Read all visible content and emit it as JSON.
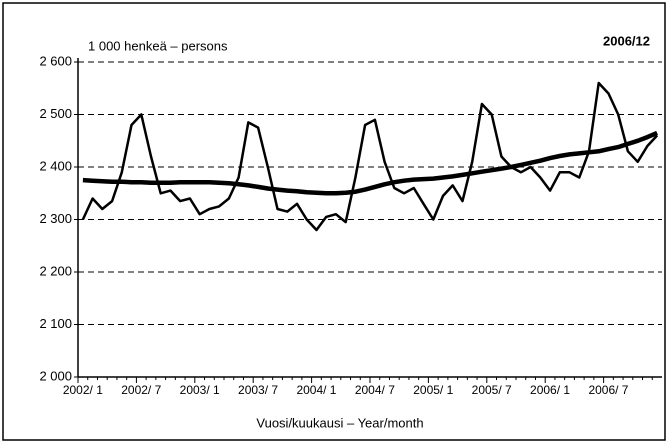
{
  "chart_data": {
    "type": "line",
    "annotation": "1 000 henkeä – persons",
    "period": "2006/12",
    "x_label": "Vuosi/kuukausi – Year/month",
    "categories": [
      "2002/ 1",
      null,
      null,
      null,
      null,
      null,
      "2002/ 7",
      null,
      null,
      null,
      null,
      null,
      "2003/ 1",
      null,
      null,
      null,
      null,
      null,
      "2003/ 7",
      null,
      null,
      null,
      null,
      null,
      "2004/ 1",
      null,
      null,
      null,
      null,
      null,
      "2004/ 7",
      null,
      null,
      null,
      null,
      null,
      "2005/ 1",
      null,
      null,
      null,
      null,
      null,
      "2005/ 7",
      null,
      null,
      null,
      null,
      null,
      "2006/ 1",
      null,
      null,
      null,
      null,
      null,
      "2006/ 7",
      null,
      null,
      null,
      null,
      null
    ],
    "series": [
      {
        "color": "#000000",
        "width": 2.5,
        "values": [
          2300,
          2340,
          2320,
          2335,
          2390,
          2480,
          2500,
          2420,
          2350,
          2355,
          2335,
          2340,
          2310,
          2320,
          2325,
          2340,
          2380,
          2485,
          2475,
          2400,
          2320,
          2315,
          2330,
          2300,
          2280,
          2305,
          2310,
          2295,
          2380,
          2480,
          2490,
          2410,
          2360,
          2350,
          2360,
          2330,
          2300,
          2345,
          2365,
          2335,
          2410,
          2520,
          2500,
          2420,
          2400,
          2390,
          2400,
          2380,
          2355,
          2390,
          2390,
          2380,
          2430,
          2560,
          2540,
          2500,
          2430,
          2410,
          2440,
          2460
        ]
      },
      {
        "color": "#000000",
        "width": 4.5,
        "values": [
          2375,
          2374,
          2373,
          2372,
          2372,
          2371,
          2371,
          2370,
          2370,
          2370,
          2371,
          2371,
          2371,
          2371,
          2370,
          2369,
          2367,
          2365,
          2362,
          2359,
          2357,
          2355,
          2354,
          2352,
          2351,
          2350,
          2350,
          2351,
          2353,
          2357,
          2362,
          2367,
          2371,
          2374,
          2376,
          2377,
          2378,
          2380,
          2382,
          2385,
          2388,
          2391,
          2394,
          2397,
          2400,
          2404,
          2408,
          2412,
          2417,
          2421,
          2424,
          2426,
          2428,
          2430,
          2434,
          2438,
          2444,
          2450,
          2457,
          2465
        ]
      }
    ],
    "ylim": [
      2000,
      2600
    ],
    "yticks": [
      {
        "value": 2000,
        "label": "2 000"
      },
      {
        "value": 2100,
        "label": "2 100"
      },
      {
        "value": 2200,
        "label": "2 200"
      },
      {
        "value": 2300,
        "label": "2 300"
      },
      {
        "value": 2400,
        "label": "2 400"
      },
      {
        "value": 2500,
        "label": "2 500"
      },
      {
        "value": 2600,
        "label": "2 600"
      }
    ],
    "grid": true
  }
}
